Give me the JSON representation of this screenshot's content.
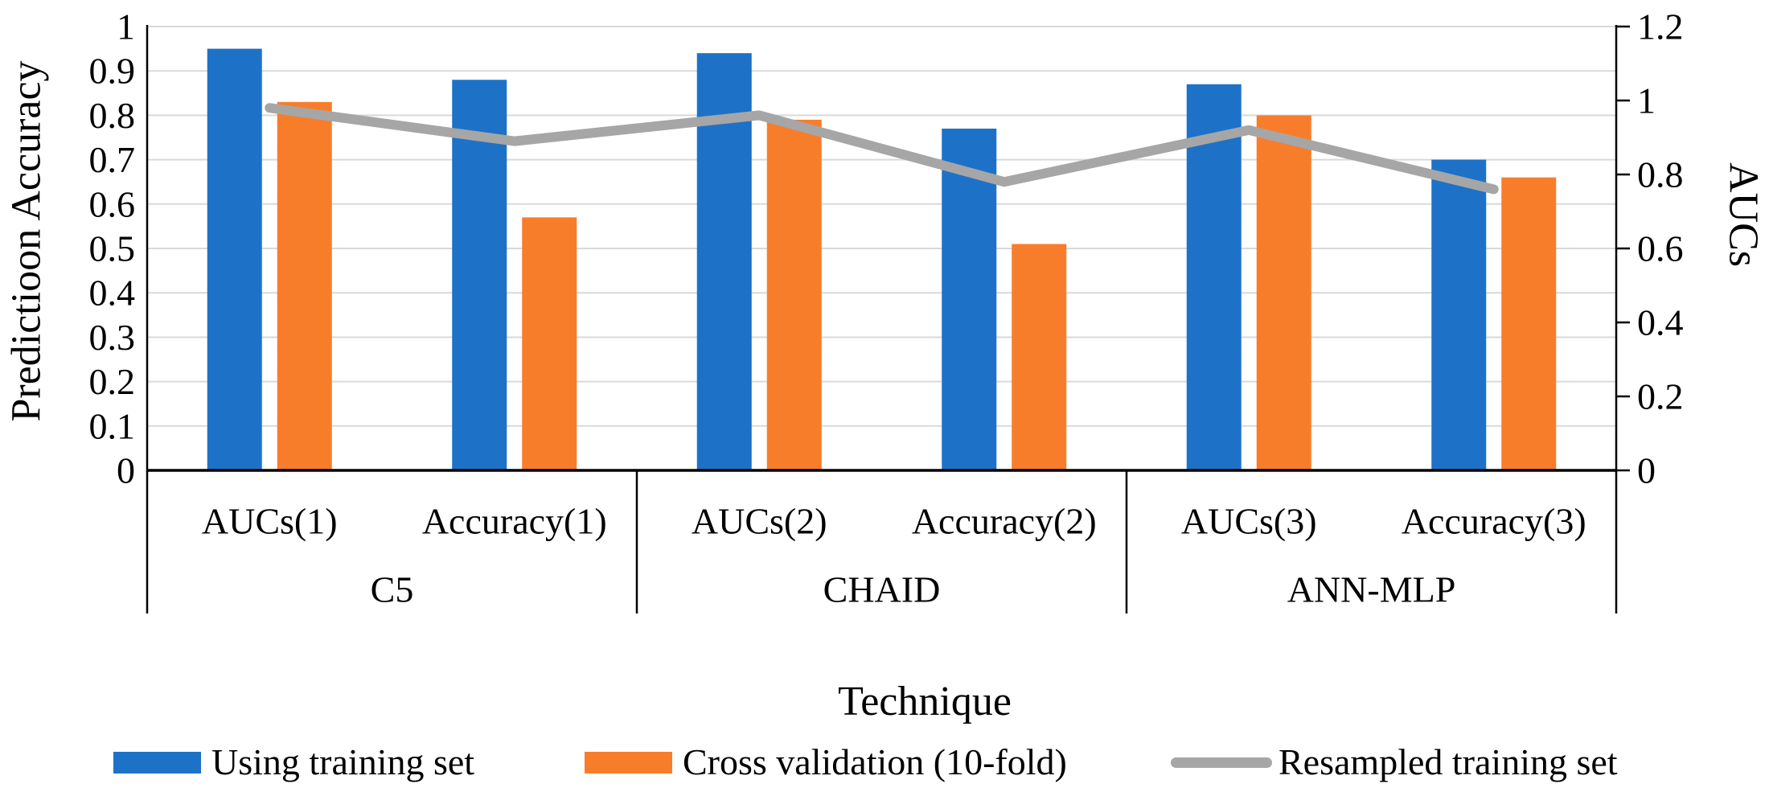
{
  "chart_data": {
    "type": "bar+line combo",
    "title": "",
    "categories": [
      "AUCs(1)",
      "Accuracy(1)",
      "AUCs(2)",
      "Accuracy(2)",
      "AUCs(3)",
      "Accuracy(3)"
    ],
    "category_groups": [
      {
        "label": "C5",
        "categories": [
          "AUCs(1)",
          "Accuracy(1)"
        ]
      },
      {
        "label": "CHAID",
        "categories": [
          "AUCs(2)",
          "Accuracy(2)"
        ]
      },
      {
        "label": "ANN-MLP",
        "categories": [
          "AUCs(3)",
          "Accuracy(3)"
        ]
      }
    ],
    "series": [
      {
        "name": "Using training set",
        "type": "bar",
        "axis": "left",
        "color": "#1D72C8",
        "values": [
          0.95,
          0.88,
          0.94,
          0.77,
          0.87,
          0.7
        ]
      },
      {
        "name": "Cross validation (10-fold)",
        "type": "bar",
        "axis": "left",
        "color": "#F87D2B",
        "values": [
          0.83,
          0.57,
          0.79,
          0.51,
          0.8,
          0.66
        ]
      },
      {
        "name": "Resampled training set",
        "type": "line",
        "axis": "right",
        "color": "#A6A6A6",
        "values": [
          0.98,
          0.89,
          0.96,
          0.78,
          0.92,
          0.76
        ]
      }
    ],
    "left_axis": {
      "title": "Predictioon Accuracy",
      "min": 0,
      "max": 1,
      "step": 0.1,
      "ticks": [
        "0",
        "0.1",
        "0.2",
        "0.3",
        "0.4",
        "0.5",
        "0.6",
        "0.7",
        "0.8",
        "0.9",
        "1"
      ]
    },
    "right_axis": {
      "title": "AUCs",
      "min": 0,
      "max": 1.2,
      "step": 0.2,
      "ticks": [
        "0",
        "0.2",
        "0.4",
        "0.6",
        "0.8",
        "1",
        "1.2"
      ]
    },
    "x_axis": {
      "title": "Technique"
    },
    "grid": true,
    "gridline_color": "#D9D9D9",
    "legend_position": "bottom"
  }
}
